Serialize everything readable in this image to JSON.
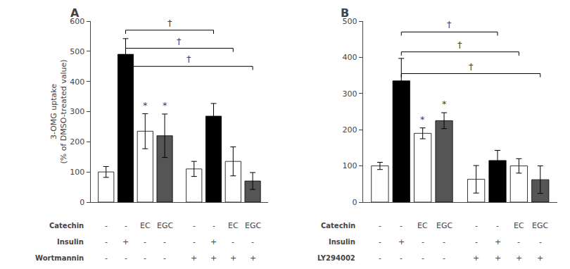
{
  "chart_data": [
    {
      "type": "bar",
      "title": "A",
      "ylabel": "3-OMG uptake\n(% of DMSO-treated value)",
      "categories": [
        null,
        null,
        null,
        null,
        null,
        null,
        null,
        null
      ],
      "values": [
        100,
        490,
        235,
        220,
        110,
        285,
        135,
        70
      ],
      "errors": [
        18,
        52,
        58,
        72,
        25,
        42,
        48,
        28
      ],
      "colors": [
        "white",
        "black",
        "white",
        "#555555",
        "white",
        "black",
        "white",
        "#555555"
      ],
      "ylim": [
        0,
        600
      ],
      "yticks": [
        0,
        100,
        200,
        300,
        400,
        500,
        600
      ],
      "grid": false,
      "tick_labels": "y",
      "stars": [
        {
          "index": 2,
          "text": "*"
        },
        {
          "index": 3,
          "text": "*"
        }
      ],
      "brackets": [
        {
          "from": 1,
          "to": 5,
          "y": 570,
          "drop": 12,
          "text": "†"
        },
        {
          "from": 1,
          "to": 6,
          "y": 510,
          "drop": 12,
          "text": "†"
        },
        {
          "from": 1,
          "to": 7,
          "y": 450,
          "drop": 12,
          "text": "†"
        }
      ],
      "rows": [
        {
          "name": "Catechin",
          "labels": [
            "-",
            "-",
            "EC",
            "EGC",
            "-",
            "-",
            "EC",
            "EGC"
          ]
        },
        {
          "name": "Insulin",
          "labels": [
            "-",
            "+",
            "-",
            "-",
            "-",
            "+",
            "-",
            "-"
          ]
        },
        {
          "name": "Wortmannin",
          "labels": [
            "-",
            "-",
            "-",
            "-",
            "+",
            "+",
            "+",
            "+"
          ]
        }
      ]
    },
    {
      "type": "bar",
      "title": "B",
      "categories": [
        null,
        null,
        null,
        null,
        null,
        null,
        null,
        null
      ],
      "values": [
        100,
        335,
        190,
        225,
        63,
        115,
        100,
        62
      ],
      "errors": [
        10,
        62,
        15,
        22,
        38,
        28,
        20,
        38
      ],
      "colors": [
        "white",
        "black",
        "white",
        "#555555",
        "white",
        "black",
        "white",
        "#555555"
      ],
      "ylim": [
        0,
        500
      ],
      "yticks": [
        0,
        100,
        200,
        300,
        400,
        500
      ],
      "grid": false,
      "tick_labels": "y",
      "stars": [
        {
          "index": 2,
          "text": "*"
        },
        {
          "index": 3,
          "text": "*"
        }
      ],
      "brackets": [
        {
          "from": 1,
          "to": 5,
          "y": 470,
          "drop": 10,
          "text": "†"
        },
        {
          "from": 1,
          "to": 6,
          "y": 415,
          "drop": 10,
          "text": "†"
        },
        {
          "from": 1,
          "to": 7,
          "y": 355,
          "drop": 10,
          "text": "†"
        }
      ],
      "rows": [
        {
          "name": "Catechin",
          "labels": [
            "-",
            "-",
            "EC",
            "EGC",
            "-",
            "-",
            "EC",
            "EGC"
          ]
        },
        {
          "name": "Insulin",
          "labels": [
            "-",
            "+",
            "-",
            "-",
            "-",
            "+",
            "-",
            "-"
          ]
        },
        {
          "name": "LY294002",
          "labels": [
            "-",
            "-",
            "-",
            "-",
            "+",
            "+",
            "+",
            "+"
          ]
        }
      ]
    }
  ]
}
